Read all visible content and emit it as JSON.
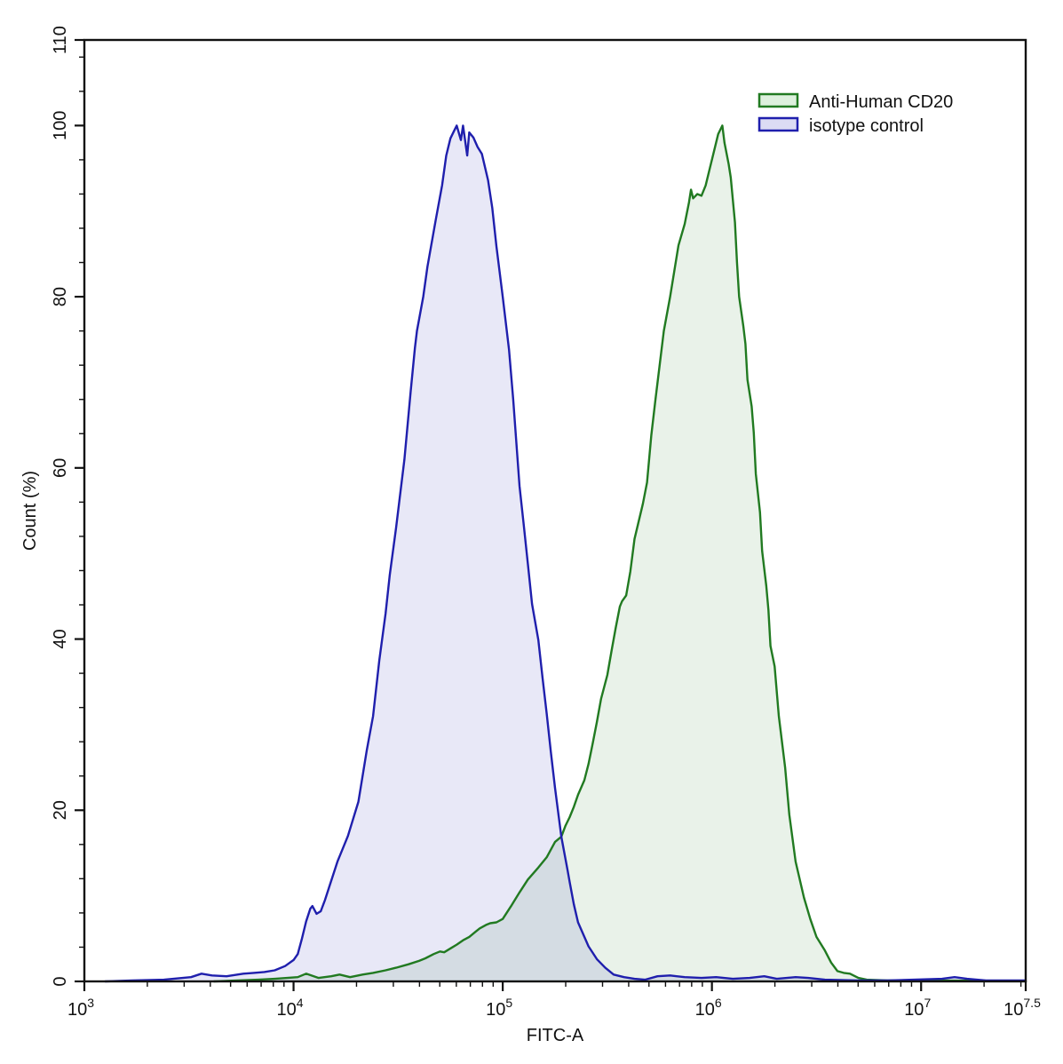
{
  "figure": {
    "background": "#ffffff"
  },
  "chart_data": {
    "type": "area",
    "subtype": "flow-cytometry-histogram-overlay",
    "title": "",
    "xlabel": "FITC-A",
    "ylabel": "Count  (%)",
    "x_scale": "log10",
    "x_range_log10": [
      3,
      7.5
    ],
    "ylim": [
      0,
      110
    ],
    "grid": false,
    "x_major_ticks": [
      {
        "log10": 3,
        "base": "10",
        "exp": "3"
      },
      {
        "log10": 4,
        "base": "10",
        "exp": "4"
      },
      {
        "log10": 5,
        "base": "10",
        "exp": "5"
      },
      {
        "log10": 6,
        "base": "10",
        "exp": "6"
      },
      {
        "log10": 7,
        "base": "10",
        "exp": "7"
      },
      {
        "log10": 7.5,
        "base": "10",
        "exp": "7.5"
      }
    ],
    "x_minor_tick_rule": "log-decades-2-to-9",
    "y_major_ticks": [
      0,
      20,
      40,
      60,
      80,
      100,
      110
    ],
    "y_minor_step": 4,
    "legend": {
      "position": "top-right",
      "entries": [
        {
          "series": "cd20",
          "label": "Anti-Human CD20"
        },
        {
          "series": "isotype",
          "label": "isotype control"
        }
      ]
    },
    "series": [
      {
        "id": "cd20",
        "name": "Anti-Human CD20",
        "stroke": "#217a21",
        "fill": "rgba(40,125,40,0.10)",
        "legend_fill": "#ddf0dd",
        "points": [
          [
            3.62,
            0
          ],
          [
            3.83,
            0.2
          ],
          [
            3.91,
            0.3
          ],
          [
            4.02,
            0.5
          ],
          [
            4.06,
            0.9
          ],
          [
            4.12,
            0.4
          ],
          [
            4.18,
            0.6
          ],
          [
            4.22,
            0.8
          ],
          [
            4.27,
            0.5
          ],
          [
            4.33,
            0.8
          ],
          [
            4.38,
            1.0
          ],
          [
            4.44,
            1.3
          ],
          [
            4.49,
            1.6
          ],
          [
            4.55,
            2.0
          ],
          [
            4.6,
            2.4
          ],
          [
            4.63,
            2.7
          ],
          [
            4.67,
            3.2
          ],
          [
            4.7,
            3.5
          ],
          [
            4.72,
            3.4
          ],
          [
            4.74,
            3.7
          ],
          [
            4.78,
            4.3
          ],
          [
            4.81,
            4.8
          ],
          [
            4.84,
            5.2
          ],
          [
            4.87,
            5.8
          ],
          [
            4.89,
            6.2
          ],
          [
            4.92,
            6.6
          ],
          [
            4.94,
            6.8
          ],
          [
            4.97,
            6.9
          ],
          [
            5.0,
            7.3
          ],
          [
            5.04,
            8.8
          ],
          [
            5.08,
            10.4
          ],
          [
            5.12,
            11.9
          ],
          [
            5.17,
            13.3
          ],
          [
            5.21,
            14.5
          ],
          [
            5.25,
            16.3
          ],
          [
            5.28,
            16.9
          ],
          [
            5.3,
            18.2
          ],
          [
            5.32,
            19.2
          ],
          [
            5.34,
            20.4
          ],
          [
            5.36,
            21.8
          ],
          [
            5.39,
            23.5
          ],
          [
            5.41,
            25.4
          ],
          [
            5.43,
            27.8
          ],
          [
            5.45,
            30.3
          ],
          [
            5.47,
            33.0
          ],
          [
            5.5,
            35.8
          ],
          [
            5.52,
            38.6
          ],
          [
            5.54,
            41.3
          ],
          [
            5.56,
            43.8
          ],
          [
            5.57,
            44.4
          ],
          [
            5.59,
            45.1
          ],
          [
            5.61,
            47.9
          ],
          [
            5.63,
            51.7
          ],
          [
            5.67,
            55.8
          ],
          [
            5.69,
            58.3
          ],
          [
            5.71,
            63.8
          ],
          [
            5.73,
            68.0
          ],
          [
            5.75,
            72.0
          ],
          [
            5.77,
            76.0
          ],
          [
            5.8,
            80.0
          ],
          [
            5.82,
            83.0
          ],
          [
            5.84,
            86.0
          ],
          [
            5.87,
            88.5
          ],
          [
            5.89,
            91.0
          ],
          [
            5.9,
            92.5
          ],
          [
            5.91,
            91.5
          ],
          [
            5.93,
            92.0
          ],
          [
            5.95,
            91.8
          ],
          [
            5.97,
            93.0
          ],
          [
            5.99,
            95.0
          ],
          [
            6.01,
            97.0
          ],
          [
            6.03,
            99.0
          ],
          [
            6.05,
            100.0
          ],
          [
            6.06,
            98.0
          ],
          [
            6.08,
            95.5
          ],
          [
            6.09,
            93.9
          ],
          [
            6.11,
            88.7
          ],
          [
            6.12,
            84.0
          ],
          [
            6.13,
            80.0
          ],
          [
            6.15,
            76.6
          ],
          [
            6.16,
            74.5
          ],
          [
            6.17,
            70.3
          ],
          [
            6.19,
            67.2
          ],
          [
            6.2,
            64.1
          ],
          [
            6.21,
            59.3
          ],
          [
            6.23,
            54.8
          ],
          [
            6.24,
            50.3
          ],
          [
            6.26,
            46.2
          ],
          [
            6.27,
            43.4
          ],
          [
            6.28,
            39.2
          ],
          [
            6.3,
            36.8
          ],
          [
            6.32,
            31.0
          ],
          [
            6.35,
            25.0
          ],
          [
            6.37,
            19.5
          ],
          [
            6.4,
            14.0
          ],
          [
            6.44,
            9.8
          ],
          [
            6.47,
            7.3
          ],
          [
            6.5,
            5.2
          ],
          [
            6.54,
            3.6
          ],
          [
            6.57,
            2.2
          ],
          [
            6.6,
            1.2
          ],
          [
            6.63,
            1.0
          ],
          [
            6.66,
            0.9
          ],
          [
            6.7,
            0.4
          ],
          [
            6.74,
            0.2
          ],
          [
            6.84,
            0.1
          ],
          [
            7.0,
            0.1
          ],
          [
            7.5,
            0.05
          ]
        ]
      },
      {
        "id": "isotype",
        "name": "isotype control",
        "stroke": "#1f1fad",
        "fill": "rgba(30,30,175,0.10)",
        "legend_fill": "#dcdcf4",
        "points": [
          [
            3.1,
            0
          ],
          [
            3.23,
            0.1
          ],
          [
            3.38,
            0.2
          ],
          [
            3.47,
            0.4
          ],
          [
            3.51,
            0.5
          ],
          [
            3.56,
            0.9
          ],
          [
            3.61,
            0.7
          ],
          [
            3.68,
            0.6
          ],
          [
            3.76,
            0.9
          ],
          [
            3.81,
            1.0
          ],
          [
            3.86,
            1.1
          ],
          [
            3.91,
            1.3
          ],
          [
            3.96,
            1.8
          ],
          [
            4.0,
            2.5
          ],
          [
            4.02,
            3.2
          ],
          [
            4.04,
            5.0
          ],
          [
            4.06,
            7.0
          ],
          [
            4.08,
            8.5
          ],
          [
            4.09,
            8.8
          ],
          [
            4.11,
            7.9
          ],
          [
            4.13,
            8.2
          ],
          [
            4.15,
            9.5
          ],
          [
            4.17,
            11.0
          ],
          [
            4.21,
            14.0
          ],
          [
            4.26,
            17.0
          ],
          [
            4.31,
            21.0
          ],
          [
            4.35,
            27.0
          ],
          [
            4.38,
            31.0
          ],
          [
            4.41,
            37.5
          ],
          [
            4.44,
            43.0
          ],
          [
            4.46,
            47.5
          ],
          [
            4.49,
            53.0
          ],
          [
            4.53,
            61.0
          ],
          [
            4.56,
            69.0
          ],
          [
            4.58,
            74.0
          ],
          [
            4.59,
            76.0
          ],
          [
            4.62,
            80.0
          ],
          [
            4.64,
            83.5
          ],
          [
            4.68,
            89.0
          ],
          [
            4.71,
            93.0
          ],
          [
            4.73,
            96.5
          ],
          [
            4.75,
            98.5
          ],
          [
            4.77,
            99.5
          ],
          [
            4.78,
            100.0
          ],
          [
            4.8,
            98.3
          ],
          [
            4.81,
            100.0
          ],
          [
            4.83,
            96.5
          ],
          [
            4.84,
            99.2
          ],
          [
            4.86,
            98.6
          ],
          [
            4.88,
            97.5
          ],
          [
            4.9,
            96.7
          ],
          [
            4.93,
            93.6
          ],
          [
            4.95,
            90.4
          ],
          [
            4.97,
            85.9
          ],
          [
            5.0,
            80.0
          ],
          [
            5.03,
            73.8
          ],
          [
            5.05,
            68.0
          ],
          [
            5.08,
            57.9
          ],
          [
            5.1,
            53.4
          ],
          [
            5.12,
            48.8
          ],
          [
            5.14,
            44.1
          ],
          [
            5.17,
            39.9
          ],
          [
            5.19,
            35.5
          ],
          [
            5.21,
            31.3
          ],
          [
            5.23,
            26.8
          ],
          [
            5.25,
            22.6
          ],
          [
            5.28,
            16.9
          ],
          [
            5.31,
            13.0
          ],
          [
            5.32,
            11.6
          ],
          [
            5.34,
            9.0
          ],
          [
            5.36,
            6.9
          ],
          [
            5.41,
            4.1
          ],
          [
            5.45,
            2.6
          ],
          [
            5.49,
            1.6
          ],
          [
            5.53,
            0.8
          ],
          [
            5.58,
            0.5
          ],
          [
            5.63,
            0.3
          ],
          [
            5.68,
            0.2
          ],
          [
            5.74,
            0.6
          ],
          [
            5.8,
            0.7
          ],
          [
            5.87,
            0.5
          ],
          [
            5.95,
            0.4
          ],
          [
            6.02,
            0.5
          ],
          [
            6.1,
            0.3
          ],
          [
            6.18,
            0.4
          ],
          [
            6.25,
            0.6
          ],
          [
            6.31,
            0.3
          ],
          [
            6.4,
            0.5
          ],
          [
            6.46,
            0.4
          ],
          [
            6.54,
            0.2
          ],
          [
            6.7,
            0.1
          ],
          [
            6.84,
            0.1
          ],
          [
            7.1,
            0.3
          ],
          [
            7.16,
            0.5
          ],
          [
            7.22,
            0.3
          ],
          [
            7.31,
            0.1
          ],
          [
            7.5,
            0.1
          ]
        ]
      }
    ]
  }
}
